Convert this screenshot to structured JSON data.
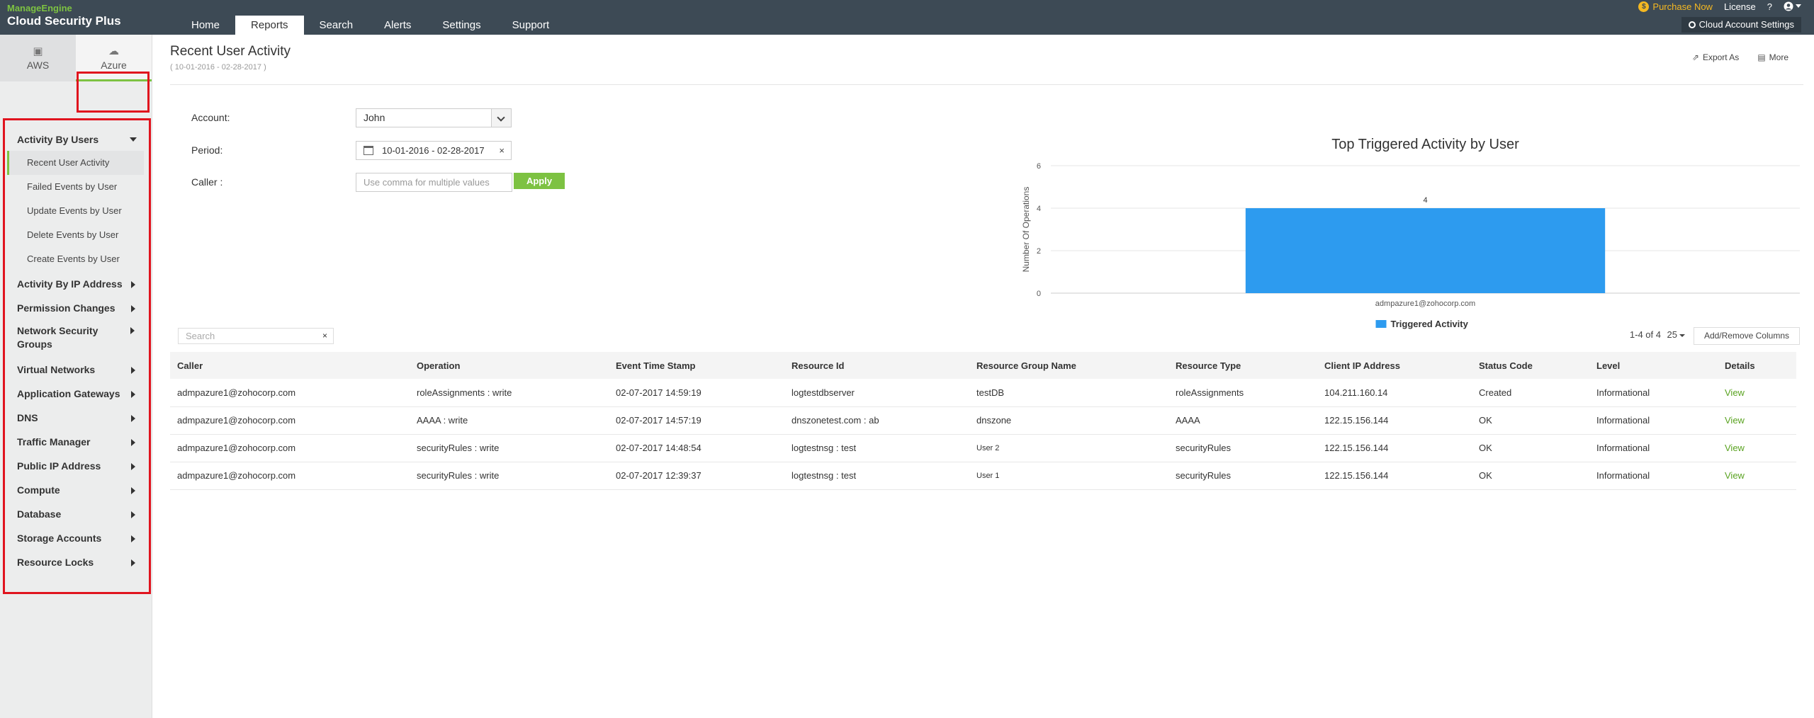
{
  "app": {
    "brand": "ManageEngine",
    "product": "Cloud Security Plus"
  },
  "nav": {
    "tabs": [
      "Home",
      "Reports",
      "Search",
      "Alerts",
      "Settings",
      "Support"
    ],
    "active": "Reports"
  },
  "topright": {
    "purchase": "Purchase Now",
    "license": "License",
    "help": "?",
    "cloud_account_settings": "Cloud Account Settings"
  },
  "sidebar": {
    "cloud_tabs": [
      "AWS",
      "Azure"
    ],
    "active_cloud": "Azure",
    "groups": [
      {
        "label": "Activity By Users",
        "expanded": true,
        "items": [
          "Recent User Activity",
          "Failed Events by User",
          "Update Events by User",
          "Delete Events by User",
          "Create Events by User"
        ]
      },
      {
        "label": "Activity By IP Address"
      },
      {
        "label": "Permission Changes"
      },
      {
        "label": "Network Security Groups"
      },
      {
        "label": "Virtual Networks"
      },
      {
        "label": "Application Gateways"
      },
      {
        "label": "DNS"
      },
      {
        "label": "Traffic Manager"
      },
      {
        "label": "Public IP Address"
      },
      {
        "label": "Compute"
      },
      {
        "label": "Database"
      },
      {
        "label": "Storage Accounts"
      },
      {
        "label": "Resource Locks"
      }
    ],
    "active_item": "Recent User Activity"
  },
  "page": {
    "title": "Recent User Activity",
    "subtitle": "( 10-01-2016 - 02-28-2017 )",
    "export": "Export As",
    "more": "More"
  },
  "filters": {
    "account_label": "Account:",
    "account_value": "John",
    "period_label": "Period:",
    "period_value": "10-01-2016 - 02-28-2017",
    "caller_label": "Caller :",
    "caller_placeholder": "Use comma for multiple values",
    "apply": "Apply",
    "clear": "×"
  },
  "chart_data": {
    "type": "bar",
    "title": "Top Triggered Activity by User",
    "ylabel": "Number Of Operations",
    "xlabel": "",
    "categories": [
      "admpazure1@zohocorp.com"
    ],
    "series": [
      {
        "name": "Triggered Activity",
        "values": [
          4
        ]
      }
    ],
    "ylim": [
      0,
      6
    ],
    "yticks": [
      0,
      2,
      4,
      6
    ],
    "grid": true,
    "legend": "bottom",
    "color": "#2d9bef"
  },
  "table": {
    "search_placeholder": "Search",
    "pager": "1-4 of 4",
    "per_page": "25",
    "add_remove": "Add/Remove Columns",
    "columns": [
      "Caller",
      "Operation",
      "Event Time Stamp",
      "Resource Id",
      "Resource Group Name",
      "Resource Type",
      "Client IP Address",
      "Status Code",
      "Level",
      "Details"
    ],
    "rows": [
      [
        "admpazure1@zohocorp.com",
        "roleAssignments : write",
        "02-07-2017 14:59:19",
        "logtestdbserver",
        "testDB",
        "roleAssignments",
        "104.211.160.14",
        "Created",
        "Informational",
        "View"
      ],
      [
        "admpazure1@zohocorp.com",
        "AAAA : write",
        "02-07-2017 14:57:19",
        "dnszonetest.com : ab",
        "dnszone",
        "AAAA",
        "122.15.156.144",
        "OK",
        "Informational",
        "View"
      ],
      [
        "admpazure1@zohocorp.com",
        "securityRules : write",
        "02-07-2017 14:48:54",
        "logtestnsg : test",
        "User 2",
        "securityRules",
        "122.15.156.144",
        "OK",
        "Informational",
        "View"
      ],
      [
        "admpazure1@zohocorp.com",
        "securityRules : write",
        "02-07-2017 12:39:37",
        "logtestnsg : test",
        "User 1",
        "securityRules",
        "122.15.156.144",
        "OK",
        "Informational",
        "View"
      ]
    ]
  },
  "colors": {
    "topbar": "#3d4a55",
    "accent": "#7dc242",
    "bar": "#2d9bef",
    "highlight": "#e0141e"
  }
}
